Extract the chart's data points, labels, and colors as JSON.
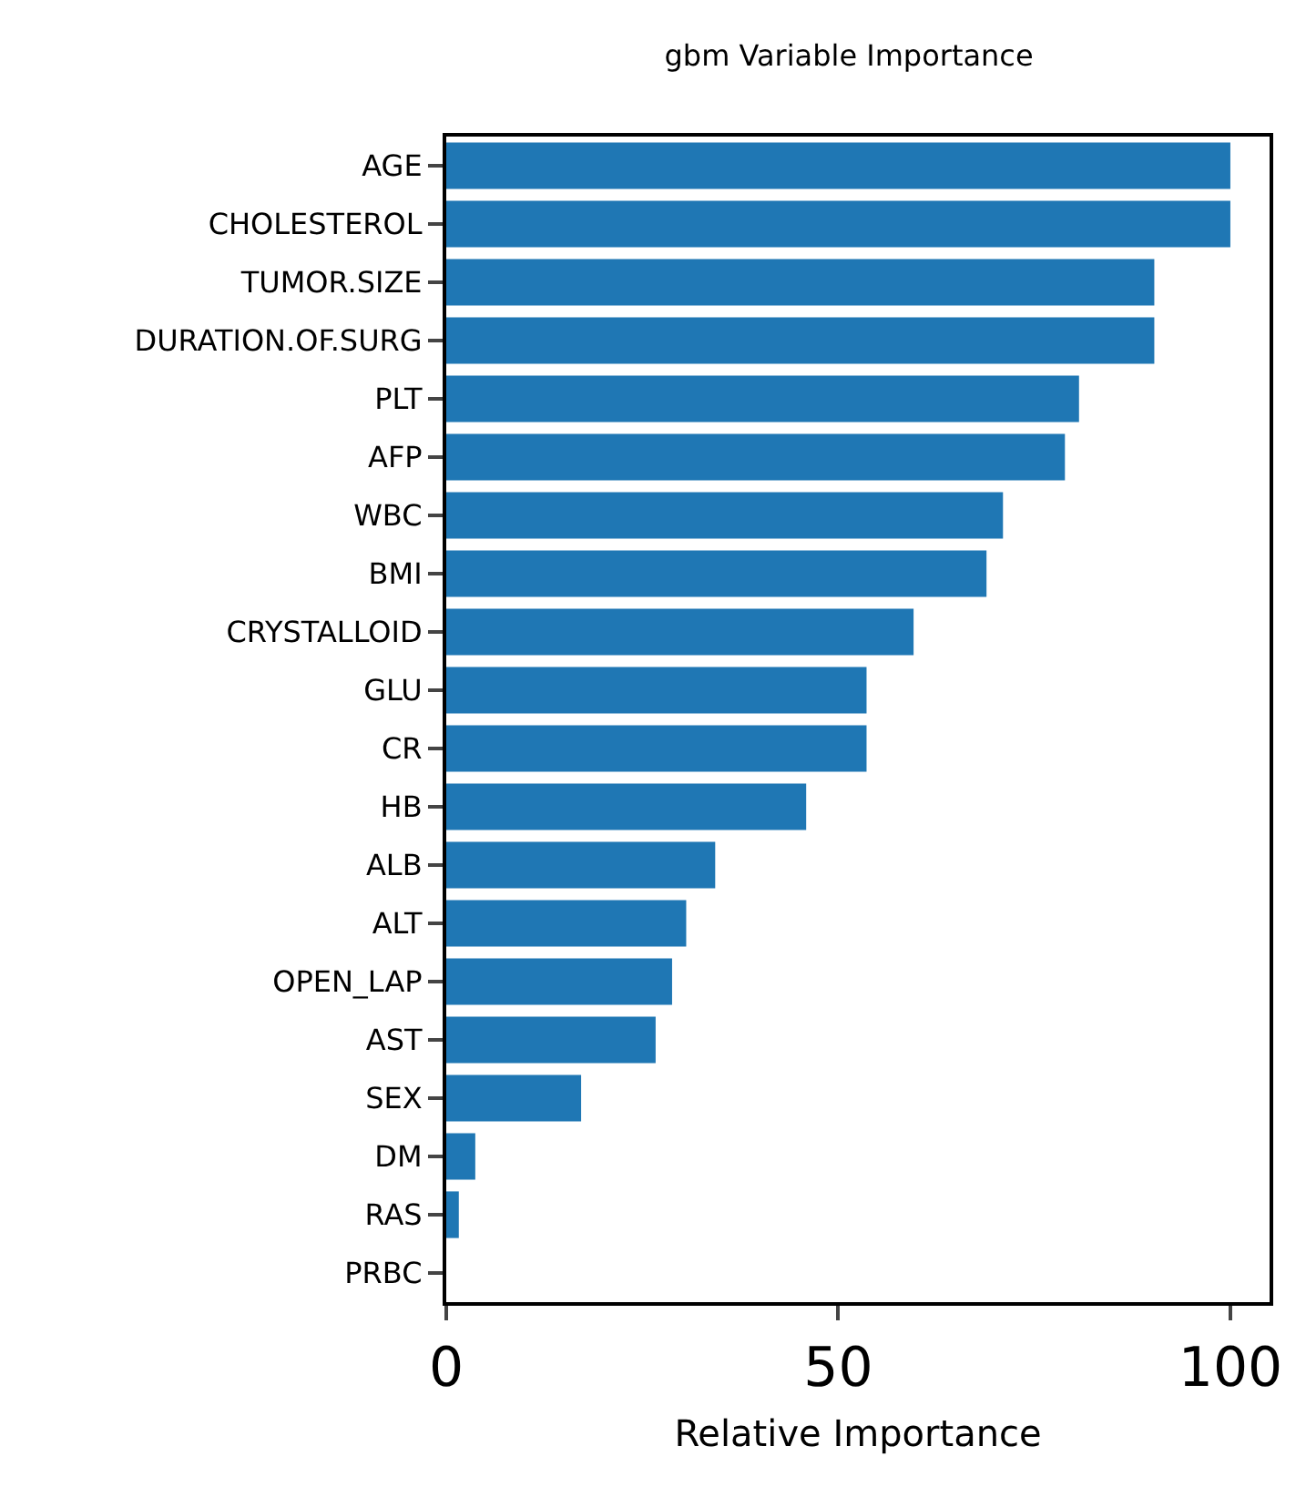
{
  "chart_data": {
    "type": "bar",
    "orientation": "horizontal",
    "title": "gbm Variable Importance",
    "xlabel": "Relative Importance",
    "categories": [
      "AGE",
      "CHOLESTEROL",
      "TUMOR.SIZE",
      "DURATION.OF.SURG",
      "PLT",
      "AFP",
      "WBC",
      "BMI",
      "CRYSTALLOID",
      "GLU",
      "CR",
      "HB",
      "ALB",
      "ALT",
      "OPEN_LAP",
      "AST",
      "SEX",
      "DM",
      "RAS",
      "PRBC"
    ],
    "values": [
      100,
      100,
      90.3,
      90.3,
      80.7,
      78.9,
      71,
      68.9,
      59.6,
      53.6,
      53.6,
      45.9,
      34.3,
      30.6,
      28.8,
      26.7,
      17.2,
      3.7,
      1.6,
      0
    ],
    "color": "#1f77b4",
    "xlim": [
      0,
      105
    ],
    "xticks": [
      0,
      50,
      100
    ]
  }
}
